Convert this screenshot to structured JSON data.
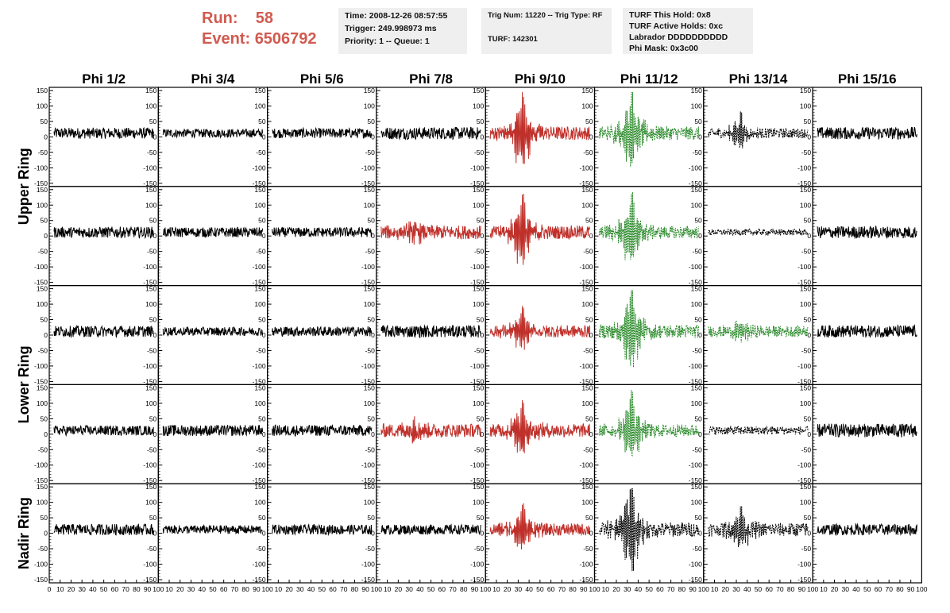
{
  "header": {
    "run_label": "Run:",
    "run_value": "58",
    "event_label": "Event:",
    "event_value": "6506792"
  },
  "info_box_1": {
    "time": "Time: 2008-12-26 08:57:55",
    "trigger": "Trigger: 249.998973 ms",
    "priority": "Priority: 1 -- Queue: 1"
  },
  "info_box_2": {
    "trig": "Trig Num: 11220 -- Trig Type: RF",
    "turf": "TURF: 142301"
  },
  "info_box_3": {
    "this_hold": "TURF This Hold: 0x8",
    "active_holds": "TURF Active Holds: 0xc",
    "labrador": "Labrador DDDDDDDDDD",
    "phi_mask": "Phi Mask: 0x3c00"
  },
  "chart_data": {
    "type": "line",
    "columns": [
      "Phi 1/2",
      "Phi 3/4",
      "Phi 5/6",
      "Phi 7/8",
      "Phi 9/10",
      "Phi 11/12",
      "Phi 13/14",
      "Phi 15/16"
    ],
    "row_groups": [
      "Upper Ring",
      "Lower Ring",
      "Nadir Ring"
    ],
    "rows": 5,
    "ylim": [
      -150,
      150
    ],
    "yticks": [
      -150,
      -100,
      -50,
      0,
      50,
      100,
      150
    ],
    "xlim": [
      0,
      100
    ],
    "xticks": [
      "0",
      "10",
      "20",
      "30",
      "40",
      "50",
      "60",
      "70",
      "80",
      "90",
      "100"
    ],
    "colors": {
      "normal": "#000000",
      "triggered": "#c0302a",
      "masked": "#2a8a2a"
    },
    "panels": [
      [
        {
          "style": "normal",
          "amp": 18,
          "pulse": 0
        },
        {
          "style": "normal",
          "amp": 14,
          "pulse": 0
        },
        {
          "style": "normal",
          "amp": 16,
          "pulse": 0
        },
        {
          "style": "normal",
          "amp": 20,
          "pulse": 0.4
        },
        {
          "style": "triggered",
          "amp": 22,
          "pulse": 110
        },
        {
          "style": "masked",
          "dash": true,
          "amp": 22,
          "pulse": 120
        },
        {
          "style": "normal",
          "dash": true,
          "amp": 16,
          "pulse": 45
        },
        {
          "style": "normal",
          "amp": 20,
          "pulse": 0
        }
      ],
      [
        {
          "style": "normal",
          "amp": 18,
          "pulse": 0
        },
        {
          "style": "normal",
          "amp": 16,
          "pulse": 0
        },
        {
          "style": "normal",
          "amp": 16,
          "pulse": 0
        },
        {
          "style": "triggered",
          "amp": 22,
          "pulse": 30
        },
        {
          "style": "triggered",
          "amp": 22,
          "pulse": 110
        },
        {
          "style": "masked",
          "dash": true,
          "amp": 20,
          "pulse": 110
        },
        {
          "style": "normal",
          "dash": true,
          "amp": 10,
          "pulse": 0
        },
        {
          "style": "normal",
          "amp": 20,
          "pulse": 0
        }
      ],
      [
        {
          "style": "normal",
          "amp": 18,
          "pulse": 0
        },
        {
          "style": "normal",
          "amp": 14,
          "pulse": 0
        },
        {
          "style": "normal",
          "amp": 16,
          "pulse": 0
        },
        {
          "style": "normal",
          "amp": 20,
          "pulse": 0
        },
        {
          "style": "triggered",
          "amp": 20,
          "pulse": 50
        },
        {
          "style": "masked",
          "dash": true,
          "amp": 22,
          "pulse": 120
        },
        {
          "style": "masked",
          "dash": true,
          "amp": 18,
          "pulse": 30
        },
        {
          "style": "normal",
          "amp": 20,
          "pulse": 0
        }
      ],
      [
        {
          "style": "normal",
          "amp": 16,
          "pulse": 0
        },
        {
          "style": "normal",
          "amp": 18,
          "pulse": 0
        },
        {
          "style": "normal",
          "amp": 18,
          "pulse": 0
        },
        {
          "style": "triggered",
          "amp": 22,
          "pulse": 30
        },
        {
          "style": "triggered",
          "amp": 22,
          "pulse": 85
        },
        {
          "style": "masked",
          "dash": true,
          "amp": 20,
          "pulse": 100
        },
        {
          "style": "normal",
          "dash": true,
          "amp": 14,
          "pulse": 0
        },
        {
          "style": "normal",
          "amp": 22,
          "pulse": 0
        }
      ],
      [
        {
          "style": "normal",
          "amp": 18,
          "pulse": 0
        },
        {
          "style": "normal",
          "amp": 14,
          "pulse": 0
        },
        {
          "style": "normal",
          "amp": 16,
          "pulse": 0
        },
        {
          "style": "normal",
          "amp": 16,
          "pulse": 0
        },
        {
          "style": "triggered",
          "amp": 20,
          "pulse": 70
        },
        {
          "style": "normal",
          "dash": true,
          "amp": 24,
          "pulse": 140
        },
        {
          "style": "normal",
          "dash": true,
          "amp": 22,
          "pulse": 60
        },
        {
          "style": "normal",
          "amp": 18,
          "pulse": 0
        }
      ]
    ]
  }
}
